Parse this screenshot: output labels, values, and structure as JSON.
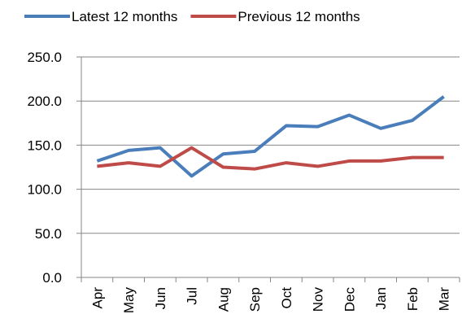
{
  "chart_data": {
    "type": "line",
    "categories": [
      "Apr",
      "May",
      "Jun",
      "Jul",
      "Aug",
      "Sep",
      "Oct",
      "Nov",
      "Dec",
      "Jan",
      "Feb",
      "Mar"
    ],
    "series": [
      {
        "name": "Latest 12 months",
        "color": "#4a7ebb",
        "values": [
          132,
          144,
          147,
          115,
          140,
          143,
          172,
          171,
          184,
          169,
          178,
          205
        ]
      },
      {
        "name": "Previous 12 months",
        "color": "#be4b48",
        "values": [
          126,
          130,
          126,
          147,
          125,
          123,
          130,
          126,
          132,
          132,
          136,
          136
        ]
      }
    ],
    "ylim": [
      0,
      250
    ],
    "yticks": [
      {
        "value": 0,
        "label": "0.0"
      },
      {
        "value": 50,
        "label": "50.0"
      },
      {
        "value": 100,
        "label": "100.0"
      },
      {
        "value": 150,
        "label": "150.0"
      },
      {
        "value": 200,
        "label": "200.0"
      },
      {
        "value": 250,
        "label": "250.0"
      }
    ],
    "grid": true,
    "legend": "top"
  }
}
